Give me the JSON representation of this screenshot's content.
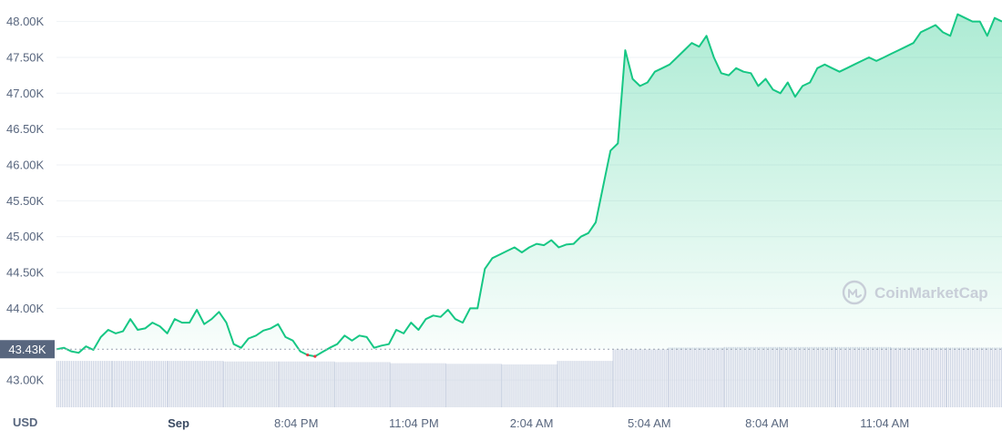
{
  "chart_data": {
    "type": "line",
    "currency_label": "USD",
    "y_ticks": [
      "48.00K",
      "47.50K",
      "47.00K",
      "46.50K",
      "46.00K",
      "45.50K",
      "45.00K",
      "44.50K",
      "44.00K",
      "43.00K"
    ],
    "ylim": [
      42620,
      48300
    ],
    "x_ticks": [
      "Sep",
      "8:04 PM",
      "11:04 PM",
      "2:04 AM",
      "5:04 AM",
      "8:04 AM",
      "11:04 AM"
    ],
    "current_price_label": "43.43K",
    "current_price": 43430,
    "watermark": "CoinMarketCap",
    "series": [
      {
        "values": [
          43430,
          43450,
          43400,
          43380,
          43470,
          43420,
          43600,
          43700,
          43650,
          43680,
          43850,
          43700,
          43720,
          43800,
          43750,
          43650,
          43850,
          43800,
          43800,
          43980,
          43780,
          43850,
          43950,
          43800,
          43500,
          43450,
          43580,
          43620,
          43690,
          43720,
          43780,
          43600,
          43550,
          43400,
          43350,
          43330,
          43390,
          43450,
          43500,
          43620,
          43550,
          43620,
          43600,
          43450,
          43480,
          43500,
          43700,
          43650,
          43800,
          43700,
          43850,
          43900,
          43880,
          43980,
          43850,
          43800,
          44000,
          44000,
          44550,
          44700,
          44750,
          44800,
          44850,
          44780,
          44850,
          44900,
          44880,
          44950,
          44850,
          44890,
          44900,
          45000,
          45050,
          45200,
          45700,
          46200,
          46300,
          47600,
          47200,
          47100,
          47150,
          47300,
          47350,
          47400,
          47500,
          47600,
          47700,
          47650,
          47800,
          47500,
          47280,
          47250,
          47350,
          47300,
          47280,
          47100,
          47200,
          47050,
          47000,
          47150,
          46950,
          47100,
          47150,
          47350,
          47400,
          47350,
          47300,
          47350,
          47400,
          47450,
          47500,
          47450,
          47500,
          47550,
          47600,
          47650,
          47700,
          47850,
          47900,
          47950,
          47850,
          47800,
          48100,
          48050,
          48000,
          48000,
          47800,
          48050,
          48000
        ]
      }
    ],
    "volume_bars": [
      80,
      80,
      80,
      79,
      79,
      78,
      76,
      75,
      74,
      80,
      100,
      103,
      104,
      104,
      104,
      103,
      103
    ]
  }
}
